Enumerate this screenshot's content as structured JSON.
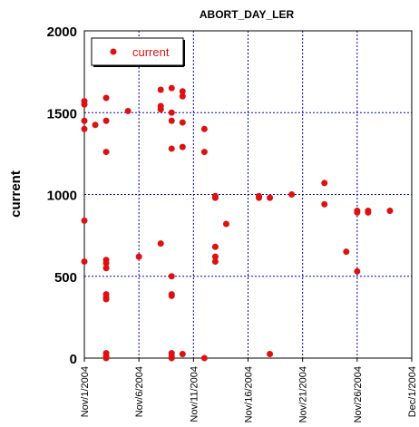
{
  "chart_data": {
    "type": "scatter",
    "title": "ABORT_DAY_LER",
    "xlabel": "",
    "ylabel": "current",
    "ylim": [
      0,
      2000
    ],
    "xlim": [
      "Nov/1/2004",
      "Dec/1/2004"
    ],
    "yticks": [
      0,
      500,
      1000,
      1500,
      2000
    ],
    "xticks": [
      "Nov/1/2004",
      "Nov/6/2004",
      "Nov/11/2004",
      "Nov/16/2004",
      "Nov/21/2004",
      "Nov/26/2004",
      "Dec/1/2004"
    ],
    "grid": true,
    "legend_position": "top-left",
    "series": [
      {
        "name": "current",
        "color": "#dd1111",
        "points": [
          [
            "Nov/1/2004",
            1570
          ],
          [
            "Nov/1/2004",
            1550
          ],
          [
            "Nov/1/2004",
            1450
          ],
          [
            "Nov/1/2004",
            1400
          ],
          [
            "Nov/1/2004",
            840
          ],
          [
            "Nov/1/2004",
            590
          ],
          [
            "Nov/2/2004",
            1425
          ],
          [
            "Nov/3/2004",
            1590
          ],
          [
            "Nov/3/2004",
            1450
          ],
          [
            "Nov/3/2004",
            1260
          ],
          [
            "Nov/3/2004",
            600
          ],
          [
            "Nov/3/2004",
            580
          ],
          [
            "Nov/3/2004",
            550
          ],
          [
            "Nov/3/2004",
            390
          ],
          [
            "Nov/3/2004",
            370
          ],
          [
            "Nov/3/2004",
            360
          ],
          [
            "Nov/3/2004",
            30
          ],
          [
            "Nov/3/2004",
            10
          ],
          [
            "Nov/3/2004",
            0
          ],
          [
            "Nov/5/2004",
            1510
          ],
          [
            "Nov/6/2004",
            620
          ],
          [
            "Nov/8/2004",
            1640
          ],
          [
            "Nov/8/2004",
            1540
          ],
          [
            "Nov/8/2004",
            1520
          ],
          [
            "Nov/8/2004",
            700
          ],
          [
            "Nov/9/2004",
            1650
          ],
          [
            "Nov/9/2004",
            1500
          ],
          [
            "Nov/9/2004",
            1450
          ],
          [
            "Nov/9/2004",
            1280
          ],
          [
            "Nov/9/2004",
            500
          ],
          [
            "Nov/9/2004",
            390
          ],
          [
            "Nov/9/2004",
            380
          ],
          [
            "Nov/9/2004",
            30
          ],
          [
            "Nov/9/2004",
            10
          ],
          [
            "Nov/9/2004",
            0
          ],
          [
            "Nov/10/2004",
            1630
          ],
          [
            "Nov/10/2004",
            1600
          ],
          [
            "Nov/10/2004",
            1440
          ],
          [
            "Nov/10/2004",
            1290
          ],
          [
            "Nov/10/2004",
            25
          ],
          [
            "Nov/12/2004",
            1400
          ],
          [
            "Nov/12/2004",
            1260
          ],
          [
            "Nov/12/2004",
            0
          ],
          [
            "Nov/13/2004",
            990
          ],
          [
            "Nov/13/2004",
            980
          ],
          [
            "Nov/13/2004",
            680
          ],
          [
            "Nov/13/2004",
            620
          ],
          [
            "Nov/13/2004",
            590
          ],
          [
            "Nov/14/2004",
            820
          ],
          [
            "Nov/17/2004",
            990
          ],
          [
            "Nov/17/2004",
            980
          ],
          [
            "Nov/18/2004",
            980
          ],
          [
            "Nov/18/2004",
            25
          ],
          [
            "Nov/20/2004",
            1000
          ],
          [
            "Nov/23/2004",
            1070
          ],
          [
            "Nov/23/2004",
            940
          ],
          [
            "Nov/25/2004",
            650
          ],
          [
            "Nov/26/2004",
            900
          ],
          [
            "Nov/26/2004",
            890
          ],
          [
            "Nov/26/2004",
            530
          ],
          [
            "Nov/27/2004",
            900
          ],
          [
            "Nov/27/2004",
            890
          ],
          [
            "Nov/29/2004",
            900
          ]
        ]
      }
    ]
  }
}
